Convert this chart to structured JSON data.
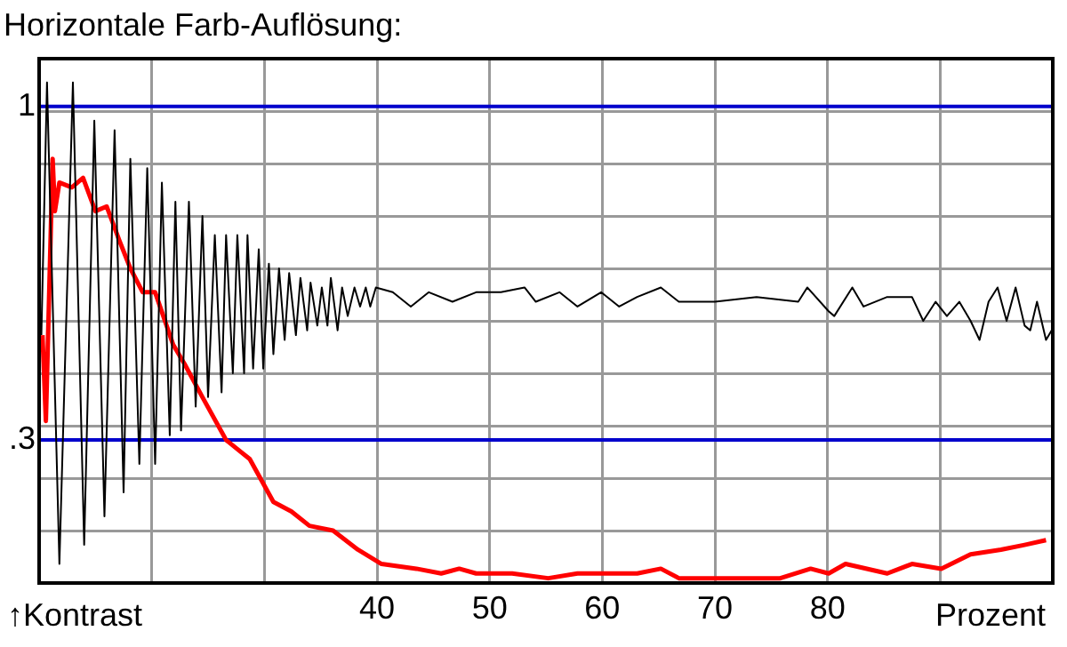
{
  "chart_data": {
    "type": "line",
    "title": "Horizontale Farb-Auflösung:",
    "xlabel": "Prozent",
    "ylabel": "↑Kontrast",
    "xlim": [
      10,
      100
    ],
    "xticks": [
      {
        "value": 20,
        "label": null
      },
      {
        "value": 30,
        "label": null
      },
      40,
      50,
      60,
      70,
      80,
      {
        "value": 90,
        "label": null
      }
    ],
    "ylim": [
      0,
      1.1
    ],
    "yticks": [
      {
        "value": 0.11,
        "label": null
      },
      {
        "value": 0.22,
        "label": null
      },
      {
        "value": 0.33,
        "label": null
      },
      {
        "value": 0.44,
        "label": null
      },
      {
        "value": 0.55,
        "label": null
      },
      {
        "value": 0.66,
        "label": null
      },
      {
        "value": 0.77,
        "label": null
      },
      {
        "value": 0.88,
        "label": null
      },
      {
        "value": 0.99,
        "label": null
      }
    ],
    "ref_lines": [
      {
        "axis": "y",
        "value": 1,
        "label": "1",
        "color": "#0000cc"
      },
      {
        "axis": "y",
        "value": 0.3,
        "label": ".3",
        "color": "#0000cc"
      }
    ],
    "grid": true,
    "legend": false,
    "marker": "none",
    "line_style": "solid",
    "series": [
      {
        "color": "#000000",
        "x": [
          10.2,
          10.7,
          11.8,
          13.0,
          14.0,
          14.9,
          15.8,
          16.7,
          17.5,
          18.1,
          18.9,
          19.6,
          20.3,
          20.9,
          21.6,
          22.1,
          22.6,
          23.3,
          23.9,
          24.5,
          25.0,
          25.6,
          26.2,
          26.6,
          27.2,
          27.6,
          28.2,
          28.5,
          29.0,
          29.5,
          29.9,
          30.4,
          30.8,
          31.3,
          31.8,
          32.2,
          32.8,
          33.2,
          33.8,
          34.1,
          34.7,
          35.1,
          35.6,
          35.9,
          36.5,
          36.9,
          37.4,
          38.0,
          38.5,
          39.0,
          39.4,
          39.9,
          41.4,
          43.0,
          44.6,
          46.7,
          48.8,
          51.0,
          53.1,
          54.1,
          56.2,
          57.8,
          59.9,
          61.5,
          63.1,
          65.2,
          66.8,
          70.0,
          73.7,
          77.4,
          78.2,
          80.1,
          80.6,
          82.2,
          83.2,
          85.3,
          87.5,
          88.5,
          89.6,
          90.6,
          91.7,
          92.7,
          93.5,
          94.3,
          95.1,
          95.9,
          96.7,
          97.5,
          98.0,
          98.6,
          99.4,
          99.9
        ],
        "values": [
          0.52,
          1.05,
          0.04,
          1.05,
          0.08,
          0.97,
          0.14,
          0.95,
          0.19,
          0.89,
          0.25,
          0.87,
          0.25,
          0.84,
          0.31,
          0.8,
          0.32,
          0.8,
          0.37,
          0.77,
          0.39,
          0.73,
          0.4,
          0.73,
          0.44,
          0.73,
          0.44,
          0.73,
          0.45,
          0.7,
          0.45,
          0.67,
          0.48,
          0.66,
          0.51,
          0.65,
          0.52,
          0.64,
          0.53,
          0.63,
          0.54,
          0.62,
          0.54,
          0.64,
          0.53,
          0.62,
          0.56,
          0.62,
          0.58,
          0.62,
          0.58,
          0.62,
          0.61,
          0.58,
          0.61,
          0.59,
          0.61,
          0.61,
          0.62,
          0.59,
          0.61,
          0.58,
          0.61,
          0.58,
          0.6,
          0.62,
          0.59,
          0.59,
          0.6,
          0.59,
          0.62,
          0.57,
          0.56,
          0.62,
          0.58,
          0.6,
          0.6,
          0.55,
          0.59,
          0.56,
          0.59,
          0.55,
          0.51,
          0.59,
          0.62,
          0.55,
          0.62,
          0.54,
          0.53,
          0.59,
          0.51,
          0.53
        ]
      },
      {
        "color": "#ff0000",
        "x": [
          10.3,
          10.6,
          11.2,
          11.4,
          11.8,
          12.9,
          13.9,
          15.0,
          16.0,
          17.1,
          18.1,
          19.2,
          20.3,
          21.9,
          22.9,
          24.5,
          26.6,
          28.7,
          30.8,
          32.4,
          34.0,
          36.1,
          38.3,
          40.4,
          43.5,
          45.7,
          47.3,
          48.8,
          52.0,
          55.2,
          57.8,
          63.1,
          65.2,
          66.8,
          71.1,
          75.8,
          78.5,
          80.1,
          81.6,
          85.3,
          87.5,
          90.1,
          92.7,
          95.4,
          97.5,
          99.4
        ],
        "values": [
          0.52,
          0.34,
          0.89,
          0.78,
          0.84,
          0.83,
          0.85,
          0.78,
          0.79,
          0.72,
          0.66,
          0.61,
          0.61,
          0.5,
          0.46,
          0.39,
          0.3,
          0.26,
          0.17,
          0.15,
          0.12,
          0.11,
          0.07,
          0.04,
          0.03,
          0.02,
          0.03,
          0.02,
          0.02,
          0.01,
          0.02,
          0.02,
          0.03,
          0.01,
          0.01,
          0.01,
          0.03,
          0.02,
          0.04,
          0.02,
          0.04,
          0.03,
          0.06,
          0.07,
          0.08,
          0.09
        ]
      }
    ]
  }
}
